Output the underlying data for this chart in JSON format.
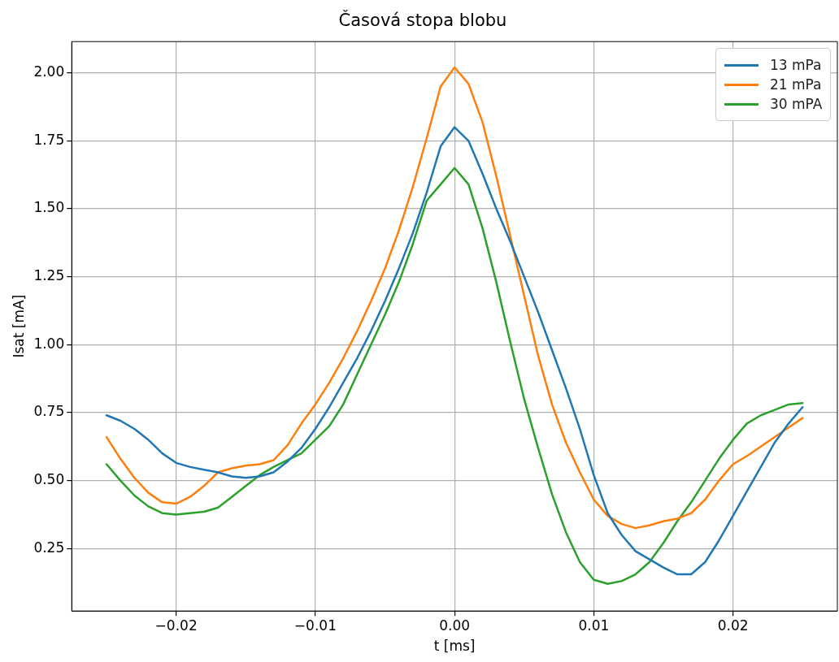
{
  "chart_data": {
    "type": "line",
    "title": "Časová stopa blobu",
    "xlabel": "t [ms]",
    "ylabel": "Isat [mA]",
    "x": [
      -0.025,
      -0.024,
      -0.023,
      -0.022,
      -0.021,
      -0.02,
      -0.019,
      -0.018,
      -0.017,
      -0.016,
      -0.015,
      -0.014,
      -0.013,
      -0.012,
      -0.011,
      -0.01,
      -0.009,
      -0.008,
      -0.007,
      -0.006,
      -0.005,
      -0.004,
      -0.003,
      -0.002,
      -0.001,
      0,
      0.001,
      0.002,
      0.003,
      0.004,
      0.005,
      0.006,
      0.007,
      0.008,
      0.009,
      0.01,
      0.011,
      0.012,
      0.013,
      0.014,
      0.015,
      0.016,
      0.017,
      0.018,
      0.019,
      0.02,
      0.021,
      0.022,
      0.023,
      0.024,
      0.025
    ],
    "series": [
      {
        "name": "13 mPa",
        "color": "#1f77b4",
        "values": [
          0.74,
          0.72,
          0.69,
          0.65,
          0.6,
          0.565,
          0.55,
          0.54,
          0.53,
          0.515,
          0.51,
          0.515,
          0.53,
          0.57,
          0.62,
          0.69,
          0.77,
          0.86,
          0.95,
          1.05,
          1.16,
          1.28,
          1.41,
          1.56,
          1.73,
          1.8,
          1.75,
          1.63,
          1.5,
          1.38,
          1.25,
          1.12,
          0.98,
          0.84,
          0.69,
          0.52,
          0.38,
          0.3,
          0.24,
          0.21,
          0.18,
          0.155,
          0.155,
          0.2,
          0.28,
          0.37,
          0.46,
          0.55,
          0.64,
          0.71,
          0.77
        ]
      },
      {
        "name": "21 mPa",
        "color": "#ff7f0e",
        "values": [
          0.66,
          0.58,
          0.51,
          0.455,
          0.42,
          0.415,
          0.44,
          0.48,
          0.53,
          0.545,
          0.555,
          0.56,
          0.575,
          0.63,
          0.71,
          0.78,
          0.86,
          0.95,
          1.05,
          1.16,
          1.28,
          1.42,
          1.58,
          1.76,
          1.95,
          2.02,
          1.96,
          1.82,
          1.62,
          1.4,
          1.18,
          0.96,
          0.78,
          0.64,
          0.53,
          0.43,
          0.37,
          0.34,
          0.325,
          0.335,
          0.35,
          0.36,
          0.38,
          0.43,
          0.5,
          0.56,
          0.59,
          0.625,
          0.66,
          0.695,
          0.73
        ]
      },
      {
        "name": "30 mPA",
        "color": "#2ca02c",
        "values": [
          0.56,
          0.5,
          0.445,
          0.405,
          0.38,
          0.375,
          0.38,
          0.385,
          0.4,
          0.44,
          0.48,
          0.52,
          0.55,
          0.575,
          0.6,
          0.65,
          0.7,
          0.78,
          0.89,
          1.0,
          1.11,
          1.23,
          1.37,
          1.53,
          1.59,
          1.65,
          1.59,
          1.43,
          1.23,
          1.01,
          0.8,
          0.62,
          0.45,
          0.31,
          0.2,
          0.135,
          0.12,
          0.13,
          0.155,
          0.2,
          0.27,
          0.35,
          0.42,
          0.5,
          0.58,
          0.65,
          0.71,
          0.74,
          0.76,
          0.78,
          0.785
        ]
      }
    ],
    "xlim": [
      -0.0275,
      0.0275
    ],
    "ylim": [
      0.02,
      2.115
    ],
    "xticks": [
      {
        "value": -0.02,
        "label": "−0.02"
      },
      {
        "value": -0.01,
        "label": "−0.01"
      },
      {
        "value": 0,
        "label": "0.00"
      },
      {
        "value": 0.01,
        "label": "0.01"
      },
      {
        "value": 0.02,
        "label": "0.02"
      }
    ],
    "yticks": [
      {
        "value": 0.25,
        "label": "0.25"
      },
      {
        "value": 0.5,
        "label": "0.50"
      },
      {
        "value": 0.75,
        "label": "0.75"
      },
      {
        "value": 1,
        "label": "1.00"
      },
      {
        "value": 1.25,
        "label": "1.25"
      },
      {
        "value": 1.5,
        "label": "1.50"
      },
      {
        "value": 1.75,
        "label": "1.75"
      },
      {
        "value": 2,
        "label": "2.00"
      }
    ],
    "grid": true,
    "legend": "top right",
    "marker": "none",
    "line_style": "solid"
  }
}
